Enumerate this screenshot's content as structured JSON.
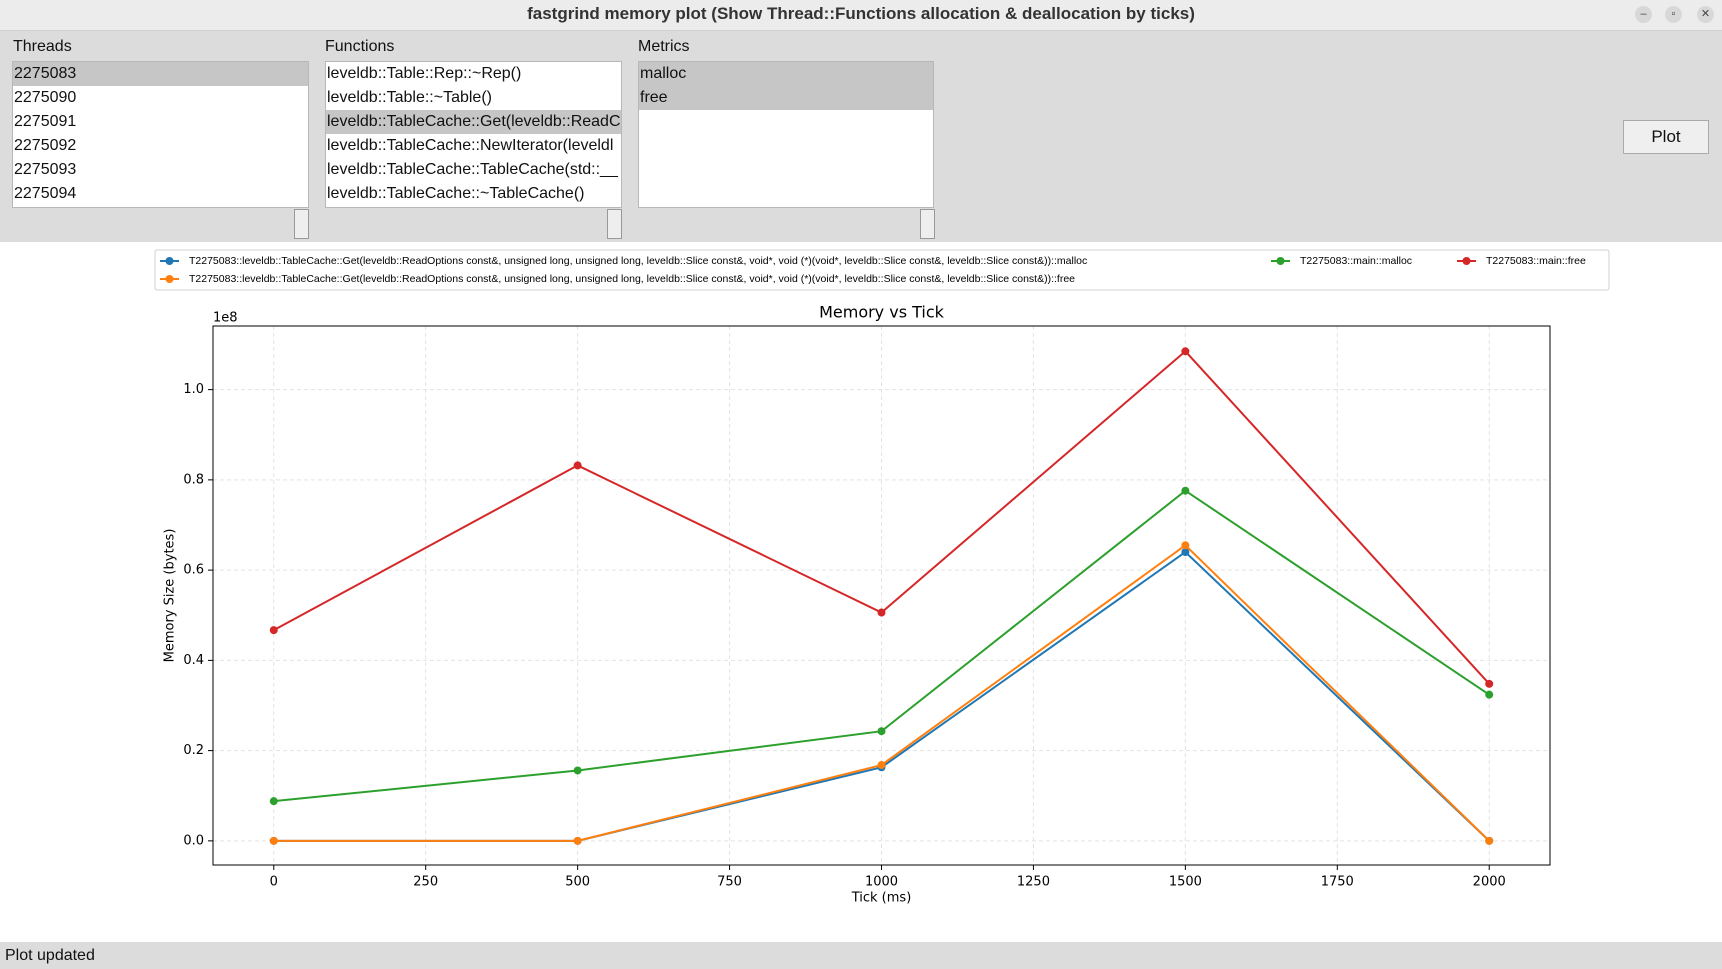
{
  "window": {
    "title": "fastgrind memory plot (Show Thread::Functions allocation & deallocation by ticks)"
  },
  "threads": {
    "label": "Threads",
    "items": [
      "2275083",
      "2275090",
      "2275091",
      "2275092",
      "2275093",
      "2275094"
    ],
    "selected": [
      0
    ]
  },
  "functions": {
    "label": "Functions",
    "items": [
      "leveldb::Table::Rep::~Rep()",
      "leveldb::Table::~Table()",
      "leveldb::TableCache::Get(leveldb::ReadC",
      "leveldb::TableCache::NewIterator(leveldl",
      "leveldb::TableCache::TableCache(std::__",
      "leveldb::TableCache::~TableCache()"
    ],
    "selected": [
      2
    ]
  },
  "metrics": {
    "label": "Metrics",
    "items": [
      "malloc",
      "free"
    ],
    "selected": [
      0,
      1
    ]
  },
  "plot_button": "Plot",
  "status": "Plot updated",
  "chart_data": {
    "type": "line",
    "title": "Memory vs Tick",
    "x_label": "Tick (ms)",
    "y_label": "Memory Size (bytes)",
    "y_offset_label": "1e8",
    "x": [
      0,
      500,
      1000,
      1500,
      2000
    ],
    "series": [
      {
        "name": "T2275083::leveldb::TableCache::Get(leveldb::ReadOptions const&, unsigned long, unsigned long, leveldb::Slice const&, void*, void (*)(void*, leveldb::Slice const&, leveldb::Slice const&))::malloc",
        "color": "#1f77b4",
        "values": [
          0,
          0,
          16300000,
          64000000,
          0
        ]
      },
      {
        "name": "T2275083::leveldb::TableCache::Get(leveldb::ReadOptions const&, unsigned long, unsigned long, leveldb::Slice const&, void*, void (*)(void*, leveldb::Slice const&, leveldb::Slice const&))::free",
        "color": "#ff7f0e",
        "values": [
          0,
          0,
          16800000,
          65500000,
          0
        ]
      },
      {
        "name": "T2275083::main::malloc",
        "color": "#2ca02c",
        "values": [
          8800000,
          15600000,
          24300000,
          77600000,
          32400000
        ]
      },
      {
        "name": "T2275083::main::free",
        "color": "#d62728",
        "values": [
          46700000,
          83200000,
          50600000,
          108500000,
          34800000
        ]
      }
    ],
    "xlim": [
      -100,
      2100
    ],
    "ylim": [
      -5350000,
      114100000
    ],
    "xticks": [
      0,
      250,
      500,
      750,
      1000,
      1250,
      1500,
      1750,
      2000
    ],
    "yticks": [
      {
        "value": 0,
        "label": "0.0"
      },
      {
        "value": 20000000,
        "label": "0.2"
      },
      {
        "value": 40000000,
        "label": "0.4"
      },
      {
        "value": 60000000,
        "label": "0.6"
      },
      {
        "value": 80000000,
        "label": "0.8"
      },
      {
        "value": 100000000,
        "label": "1.0"
      }
    ],
    "grid": true,
    "legend": "top",
    "legend_columns": 3
  }
}
